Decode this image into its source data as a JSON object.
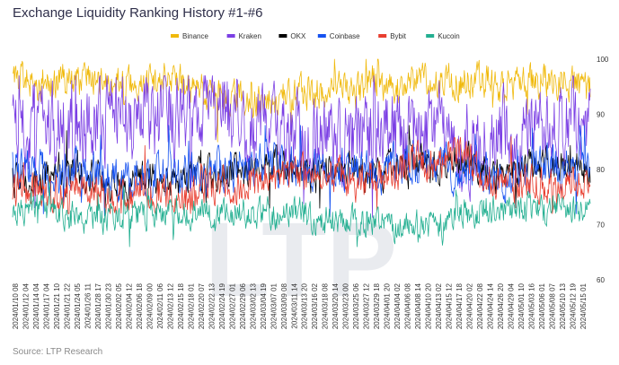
{
  "chart_data": {
    "type": "line",
    "title": "Exchange Liquidity Ranking History #1-#6",
    "source": "Source: LTP Research",
    "watermark": "LTP",
    "xlabel": "",
    "ylabel": "",
    "ylim": [
      60,
      100
    ],
    "yticks": [
      60,
      70,
      80,
      90,
      100
    ],
    "grid": false,
    "legend_position": "top",
    "x_dates": [
      "2024/01/10 08",
      "2024/01/12 04",
      "2024/01/14 04",
      "2024/01/17 04",
      "2024/01/21 10",
      "2024/01/21 22",
      "2024/01/24 05",
      "2024/01/26 11",
      "2024/01/28 17",
      "2024/01/30 23",
      "2024/02/02 05",
      "2024/02/04 12",
      "2024/02/06 18",
      "2024/02/09 00",
      "2024/02/11 06",
      "2024/02/13 12",
      "2024/02/15 18",
      "2024/02/18 01",
      "2024/02/20 07",
      "2024/02/22 13",
      "2024/02/24 19",
      "2024/02/27 01",
      "2024/02/29 06",
      "2024/03/02 13",
      "2024/03/04 19",
      "2024/03/07 01",
      "2024/03/09 08",
      "2024/03/11 14",
      "2024/03/13 20",
      "2024/03/16 02",
      "2024/03/18 08",
      "2024/03/20 14",
      "2024/03/23 00",
      "2024/03/25 06",
      "2024/03/27 12",
      "2024/03/29 18",
      "2024/04/01 20",
      "2024/04/04 02",
      "2024/04/06 08",
      "2024/04/08 14",
      "2024/04/10 20",
      "2024/04/13 02",
      "2024/04/15 12",
      "2024/04/17 18",
      "2024/04/20 02",
      "2024/04/22 08",
      "2024/04/24 14",
      "2024/04/26 20",
      "2024/04/29 04",
      "2024/05/01 10",
      "2024/05/03 16",
      "2024/05/06 01",
      "2024/05/08 07",
      "2024/05/10 13",
      "2024/05/12 19",
      "2024/05/15 01"
    ],
    "series": [
      {
        "name": "Binance",
        "color": "#f0b90b",
        "approx_range": [
          85,
          100
        ],
        "mean_profile": [
          96,
          96,
          96,
          96,
          96,
          96,
          96,
          96,
          96,
          96,
          96,
          96,
          95,
          96,
          96,
          96,
          96,
          95,
          93,
          92,
          93,
          94,
          93,
          92,
          92,
          93,
          94,
          94,
          94,
          94,
          95,
          95,
          94,
          94,
          96,
          96,
          95,
          95,
          96,
          96,
          95,
          96,
          96,
          96,
          96,
          96,
          96,
          95,
          95,
          96,
          96,
          96,
          96,
          96,
          95,
          95
        ]
      },
      {
        "name": "Kraken",
        "color": "#7b3fe4",
        "approx_range": [
          61,
          97
        ],
        "mean_profile": [
          87,
          88,
          88,
          88,
          87,
          87,
          88,
          88,
          89,
          89,
          89,
          89,
          89,
          89,
          89,
          90,
          90,
          90,
          89,
          88,
          89,
          89,
          88,
          87,
          87,
          87,
          86,
          86,
          86,
          86,
          86,
          86,
          85,
          86,
          87,
          87,
          86,
          86,
          86,
          87,
          87,
          87,
          85,
          84,
          85,
          86,
          86,
          86,
          87,
          87,
          88,
          87,
          88,
          88,
          88,
          88
        ]
      },
      {
        "name": "OKX",
        "color": "#000000",
        "approx_range": [
          73,
          88
        ],
        "mean_profile": [
          78,
          78,
          79,
          79,
          78,
          79,
          80,
          79,
          78,
          78,
          77,
          77,
          78,
          78,
          78,
          78,
          78,
          79,
          79,
          79,
          79,
          80,
          80,
          80,
          80,
          81,
          80,
          80,
          79,
          79,
          80,
          80,
          80,
          80,
          79,
          79,
          80,
          80,
          81,
          81,
          80,
          81,
          82,
          82,
          81,
          80,
          79,
          80,
          80,
          80,
          81,
          81,
          80,
          80,
          80,
          80
        ]
      },
      {
        "name": "Coinbase",
        "color": "#1652f0",
        "approx_range": [
          70,
          88
        ],
        "mean_profile": [
          80,
          80,
          80,
          80,
          79,
          79,
          81,
          80,
          79,
          79,
          78,
          78,
          79,
          79,
          79,
          79,
          79,
          79,
          80,
          80,
          80,
          80,
          80,
          81,
          81,
          81,
          81,
          81,
          80,
          81,
          81,
          81,
          80,
          79,
          80,
          80,
          81,
          81,
          81,
          81,
          81,
          81,
          80,
          79,
          80,
          79,
          79,
          79,
          80,
          80,
          81,
          81,
          80,
          80,
          81,
          81
        ]
      },
      {
        "name": "Bybit",
        "color": "#e83e2f",
        "approx_range": [
          72,
          88
        ],
        "mean_profile": [
          77,
          76,
          76,
          77,
          76,
          76,
          77,
          77,
          76,
          76,
          75,
          75,
          75,
          76,
          76,
          75,
          75,
          76,
          76,
          77,
          77,
          77,
          77,
          78,
          78,
          78,
          78,
          79,
          79,
          79,
          79,
          79,
          78,
          78,
          79,
          79,
          80,
          80,
          81,
          81,
          81,
          82,
          83,
          83,
          81,
          79,
          78,
          78,
          78,
          77,
          77,
          77,
          77,
          77,
          77,
          77
        ]
      },
      {
        "name": "Kucoin",
        "color": "#23af91",
        "approx_range": [
          66,
          79
        ],
        "mean_profile": [
          73,
          73,
          73,
          73,
          72,
          72,
          71,
          71,
          71,
          71,
          72,
          72,
          72,
          72,
          72,
          72,
          72,
          72,
          72,
          71,
          72,
          72,
          72,
          72,
          72,
          72,
          72,
          73,
          72,
          71,
          71,
          71,
          71,
          70,
          70,
          70,
          70,
          70,
          70,
          70,
          70,
          70,
          71,
          72,
          72,
          73,
          73,
          73,
          73,
          73,
          73,
          73,
          73,
          73,
          73,
          73
        ]
      }
    ]
  }
}
